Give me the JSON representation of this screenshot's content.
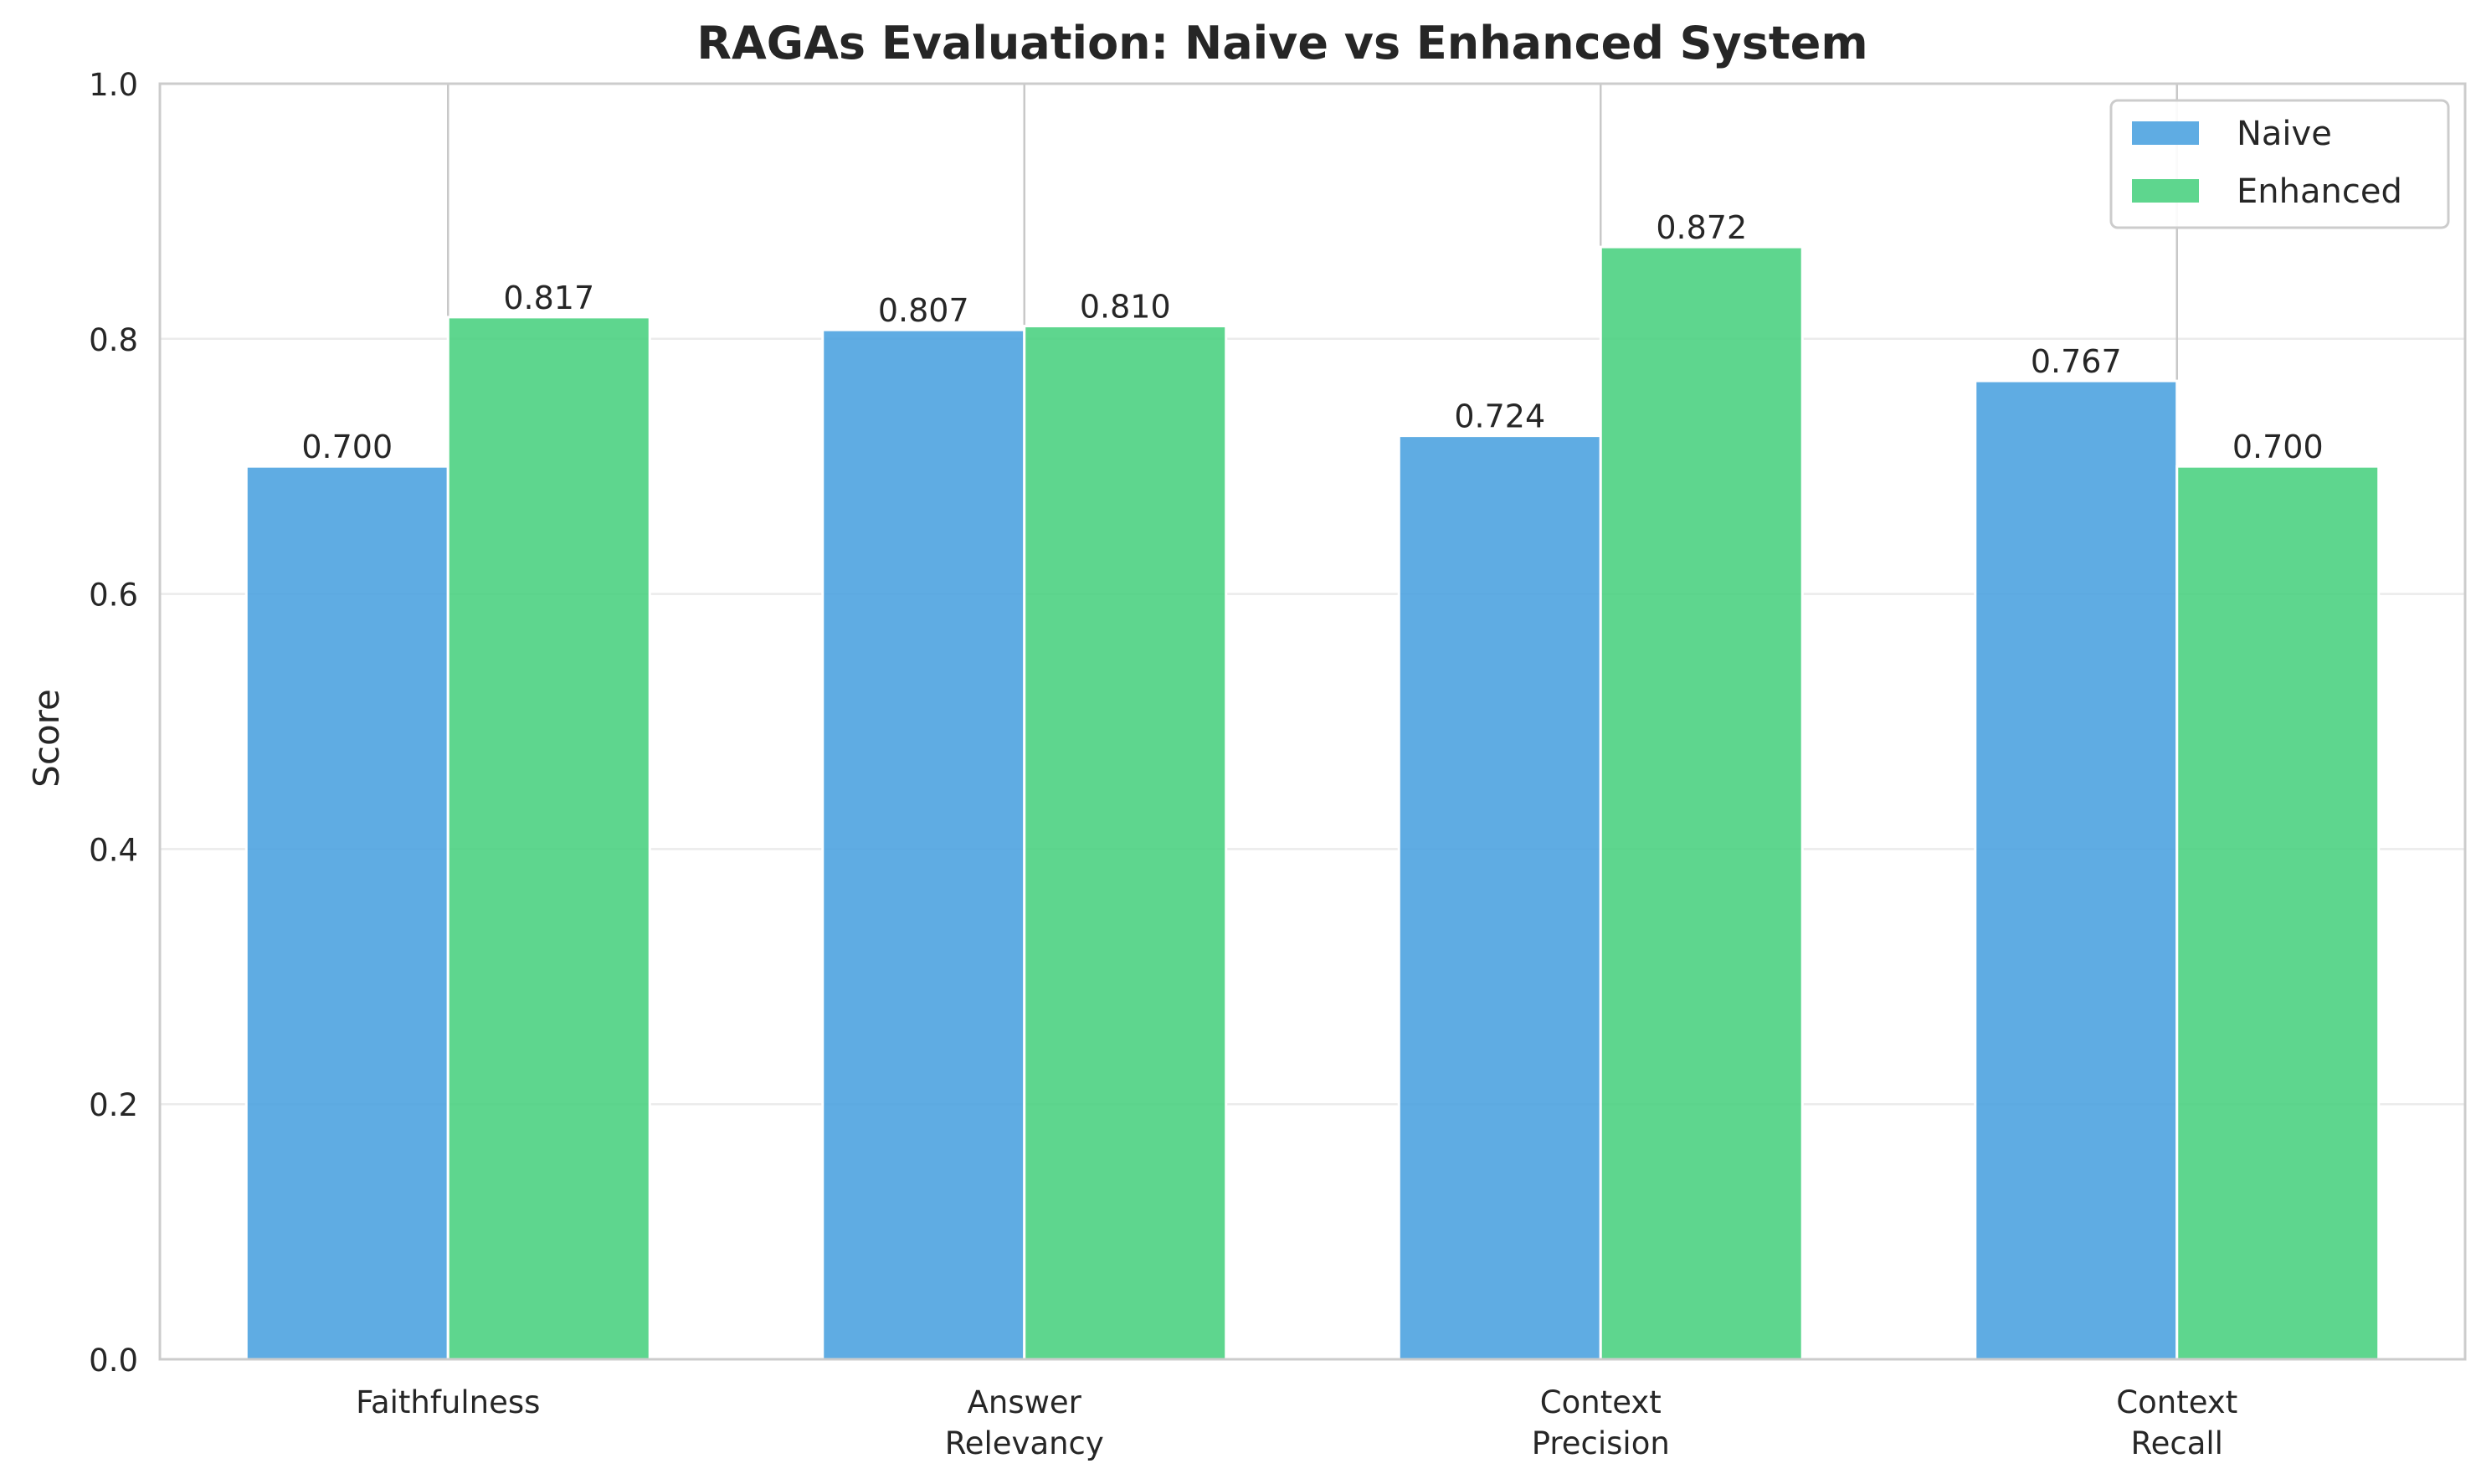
{
  "chart_data": {
    "type": "bar",
    "title": "RAGAs Evaluation: Naive vs Enhanced System",
    "ylabel": "Score",
    "xlabel": "",
    "ylim": [
      0,
      1.0
    ],
    "yticks": [
      "0.0",
      "0.2",
      "0.4",
      "0.6",
      "0.8",
      "1.0"
    ],
    "categories": [
      [
        "Faithfulness"
      ],
      [
        "Answer",
        "Relevancy"
      ],
      [
        "Context",
        "Precision"
      ],
      [
        "Context",
        "Recall"
      ]
    ],
    "series": [
      {
        "name": "Naive",
        "color": "#4ea3e0",
        "values": [
          0.7,
          0.807,
          0.724,
          0.767
        ],
        "labels": [
          "0.700",
          "0.807",
          "0.724",
          "0.767"
        ]
      },
      {
        "name": "Enhanced",
        "color": "#4cd182",
        "values": [
          0.817,
          0.81,
          0.872,
          0.7
        ],
        "labels": [
          "0.817",
          "0.810",
          "0.872",
          "0.700"
        ]
      }
    ],
    "legend": "top-right",
    "grid": "horizontal"
  }
}
